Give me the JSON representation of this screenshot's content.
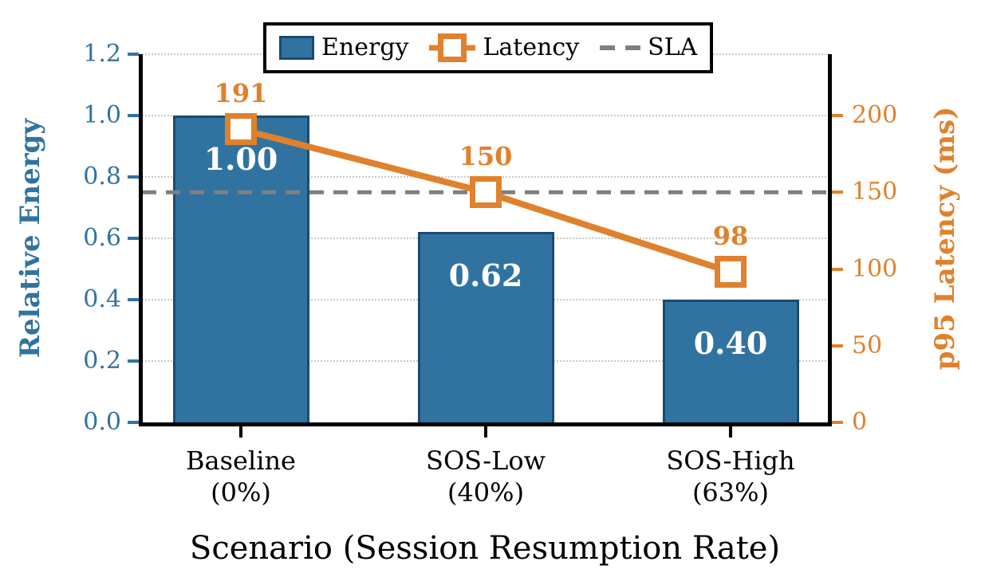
{
  "chart_data": {
    "type": "bar+line",
    "categories": [
      "Baseline\n(0%)",
      "SOS-Low\n(40%)",
      "SOS-High\n(63%)"
    ],
    "xlabel": "Scenario (Session Resumption Rate)",
    "left_axis": {
      "label": "Relative Energy",
      "lim": [
        0,
        1.2
      ],
      "ticks": [
        "0.0",
        "0.2",
        "0.4",
        "0.6",
        "0.8",
        "1.0",
        "1.2"
      ],
      "color": "#3173A0"
    },
    "right_axis": {
      "label": "p95 Latency (ms)",
      "lim": [
        0,
        240
      ],
      "ticks": [
        "0",
        "50",
        "100",
        "150",
        "200"
      ],
      "color": "#E0812D"
    },
    "series": [
      {
        "name": "Energy",
        "type": "bar",
        "axis": "left",
        "values": [
          1.0,
          0.62,
          0.4
        ],
        "value_labels": [
          "1.00",
          "0.62",
          "0.40"
        ],
        "color": "#3173A0",
        "edge_color": "#1C4A6E"
      },
      {
        "name": "Latency",
        "type": "line",
        "axis": "right",
        "values": [
          191,
          150,
          98
        ],
        "value_labels": [
          "191",
          "150",
          "98"
        ],
        "color": "#E0812D",
        "marker": "open-square"
      }
    ],
    "reference_line": {
      "name": "SLA",
      "axis": "right",
      "value": 150,
      "color": "#7F7F7F",
      "style": "dashed"
    },
    "legend": {
      "position": "top-center",
      "entries": [
        "Energy",
        "Latency",
        "SLA"
      ]
    },
    "grid": "horizontal-dotted",
    "grid_color": "#C9C9C9",
    "background": "#FFFFFF"
  }
}
